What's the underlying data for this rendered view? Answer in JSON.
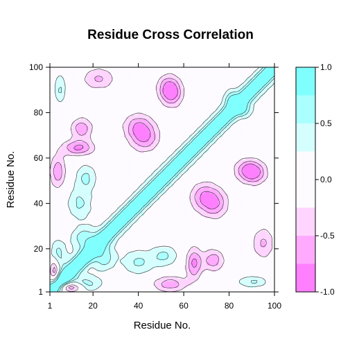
{
  "chart_data": {
    "type": "heatmap",
    "subtype": "filled-contour",
    "title": "Residue Cross Correlation",
    "xlabel": "Residue No.",
    "ylabel": "Residue No.",
    "xlim": [
      1,
      100
    ],
    "ylim": [
      1,
      100
    ],
    "x_ticks": [
      1,
      20,
      40,
      60,
      80,
      100
    ],
    "y_ticks": [
      1,
      20,
      40,
      60,
      80,
      100
    ],
    "colorbar": {
      "ticks": [
        "-1.0",
        "-0.5",
        "0.0",
        "0.5",
        "1.0"
      ],
      "range": [
        -1.0,
        1.0
      ],
      "levels": [
        {
          "from": -1.0,
          "to": -0.75,
          "color": "#ff80ff"
        },
        {
          "from": -0.75,
          "to": -0.5,
          "color": "#ffaaff"
        },
        {
          "from": -0.5,
          "to": -0.25,
          "color": "#ffd5ff"
        },
        {
          "from": -0.25,
          "to": 0.25,
          "color": "#fdfbff"
        },
        {
          "from": 0.25,
          "to": 0.5,
          "color": "#d5ffff"
        },
        {
          "from": 0.5,
          "to": 0.75,
          "color": "#aaffff"
        },
        {
          "from": 0.75,
          "to": 1.0,
          "color": "#80ffff"
        }
      ]
    },
    "features": {
      "diagonal": {
        "value": 1.0,
        "note": "self-correlation along residue i = j"
      },
      "positive_regions": [
        {
          "x": [
            10,
            25
          ],
          "y": [
            1,
            8
          ],
          "value": 0.4
        },
        {
          "x": [
            1,
            8
          ],
          "y": [
            10,
            25
          ],
          "value": 0.4
        },
        {
          "x": [
            20,
            30
          ],
          "y": [
            10,
            22
          ],
          "value": 0.4
        },
        {
          "x": [
            10,
            22
          ],
          "y": [
            20,
            30
          ],
          "value": 0.4
        },
        {
          "x": [
            45,
            58
          ],
          "y": [
            12,
            22
          ],
          "value": 0.4
        },
        {
          "x": [
            12,
            22
          ],
          "y": [
            45,
            58
          ],
          "value": 0.4
        },
        {
          "x": [
            83,
            98
          ],
          "y": [
            3,
            8
          ],
          "value": 0.4
        },
        {
          "x": [
            3,
            8
          ],
          "y": [
            83,
            98
          ],
          "value": 0.4
        },
        {
          "x": [
            8,
            20
          ],
          "y": [
            32,
            48
          ],
          "value": 0.4
        },
        {
          "x": [
            32,
            48
          ],
          "y": [
            8,
            20
          ],
          "value": 0.4
        },
        {
          "x": [
            82,
            90
          ],
          "y": [
            78,
            84
          ],
          "value": 0.4
        },
        {
          "x": [
            78,
            84
          ],
          "y": [
            82,
            90
          ],
          "value": 0.4
        }
      ],
      "negative_regions": [
        {
          "x": [
            6,
            21
          ],
          "y": [
            61,
            68
          ],
          "value": -0.6
        },
        {
          "x": [
            61,
            68
          ],
          "y": [
            6,
            21
          ],
          "value": -0.6
        },
        {
          "x": [
            1,
            8
          ],
          "y": [
            46,
            62
          ],
          "value": -0.5
        },
        {
          "x": [
            46,
            62
          ],
          "y": [
            1,
            8
          ],
          "value": -0.5
        },
        {
          "x": [
            1,
            5
          ],
          "y": [
            5,
            16
          ],
          "value": -0.7
        },
        {
          "x": [
            5,
            16
          ],
          "y": [
            1,
            5
          ],
          "value": -0.7
        },
        {
          "x": [
            33,
            47
          ],
          "y": [
            68,
            80
          ],
          "value": -0.5
        },
        {
          "x": [
            68,
            80
          ],
          "y": [
            33,
            47
          ],
          "value": -0.5
        },
        {
          "x": [
            82,
            95
          ],
          "y": [
            50,
            60
          ],
          "value": -0.5
        },
        {
          "x": [
            50,
            60
          ],
          "y": [
            82,
            95
          ],
          "value": -0.5
        },
        {
          "x": [
            62,
            75
          ],
          "y": [
            36,
            50
          ],
          "value": -0.5
        },
        {
          "x": [
            36,
            50
          ],
          "y": [
            62,
            75
          ],
          "value": -0.5
        },
        {
          "x": [
            68,
            78
          ],
          "y": [
            10,
            20
          ],
          "value": -0.5
        },
        {
          "x": [
            10,
            20
          ],
          "y": [
            68,
            78
          ],
          "value": -0.5
        },
        {
          "x": [
            48,
            58
          ],
          "y": [
            85,
            97
          ],
          "value": -0.45
        },
        {
          "x": [
            85,
            97
          ],
          "y": [
            48,
            58
          ],
          "value": -0.45
        },
        {
          "x": [
            90,
            100
          ],
          "y": [
            15,
            30
          ],
          "value": -0.4
        },
        {
          "x": [
            15,
            30
          ],
          "y": [
            90,
            100
          ],
          "value": -0.4
        }
      ]
    }
  }
}
